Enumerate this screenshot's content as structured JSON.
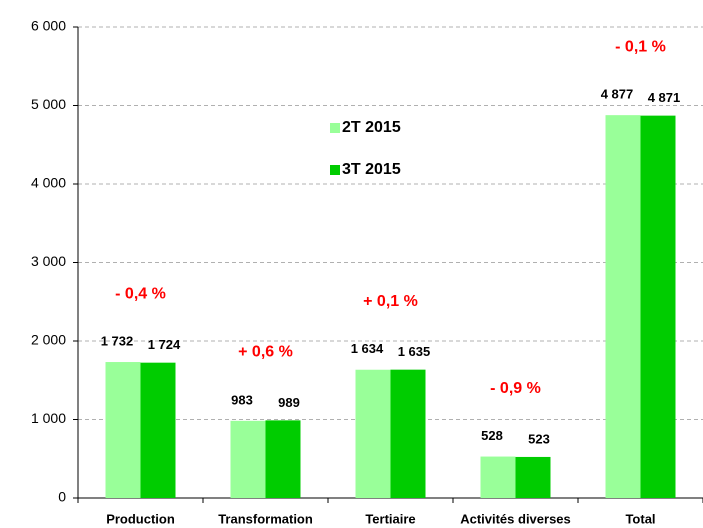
{
  "chart_data": {
    "type": "bar",
    "categories": [
      "Production",
      "Transformation",
      "Tertiaire",
      "Activités diverses",
      "Total"
    ],
    "series": [
      {
        "name": "2T 2015",
        "color": "#99ff99",
        "values": [
          1732,
          983,
          1634,
          528,
          4877
        ],
        "value_labels": [
          "1 732",
          "983",
          "1 634",
          "528",
          "4 877"
        ]
      },
      {
        "name": "3T 2015",
        "color": "#00cc00",
        "values": [
          1724,
          989,
          1635,
          523,
          4871
        ],
        "value_labels": [
          "1 724",
          "989",
          "1 635",
          "523",
          "4 871"
        ]
      }
    ],
    "change_labels": [
      "- 0,4 %",
      "+ 0,6 %",
      "+ 0,1 %",
      "- 0,9 %",
      "- 0,1 %"
    ],
    "ylim": [
      0,
      6000
    ],
    "yticks": [
      0,
      {
        "value": 1000,
        "label": "1 000"
      },
      {
        "value": 2000,
        "label": "2 000"
      },
      {
        "value": 3000,
        "label": "3 000"
      },
      {
        "value": 4000,
        "label": "4 000"
      },
      {
        "value": 5000,
        "label": "5 000"
      },
      {
        "value": 6000,
        "label": "6 000"
      }
    ],
    "grid": true
  }
}
